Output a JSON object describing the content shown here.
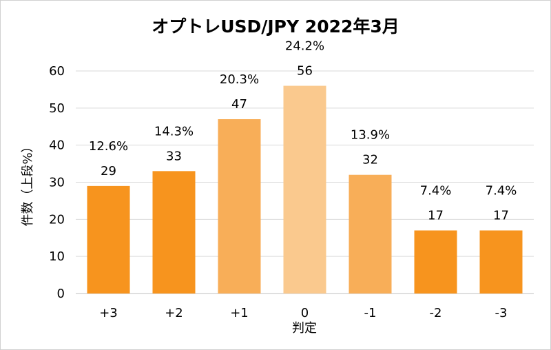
{
  "chart_data": {
    "type": "bar",
    "title": "オプトレUSD/JPY 2022年3月",
    "xlabel": "判定",
    "ylabel": "件数（上段%）",
    "categories": [
      "+3",
      "+2",
      "+1",
      "0",
      "-1",
      "-2",
      "-3"
    ],
    "values": [
      29,
      33,
      47,
      56,
      32,
      17,
      17
    ],
    "percent_labels": [
      "12.6%",
      "14.3%",
      "20.3%",
      "24.2%",
      "13.9%",
      "7.4%",
      "7.4%"
    ],
    "bar_colors": [
      "#F7941E",
      "#F7941E",
      "#F8AE58",
      "#FAC98E",
      "#F8AE58",
      "#F7941E",
      "#F7941E"
    ],
    "ylim": [
      0,
      60
    ],
    "yticks": [
      0,
      10,
      20,
      30,
      40,
      50,
      60
    ],
    "grid": true,
    "legend": false
  }
}
